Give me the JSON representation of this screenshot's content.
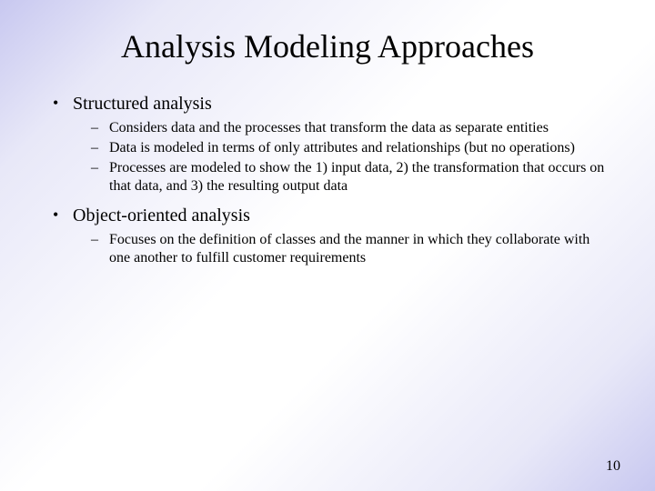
{
  "slide": {
    "title": "Analysis Modeling Approaches",
    "page_number": "10",
    "background_gradient": [
      "#c8c8f0",
      "#ffffff",
      "#c8c8f0"
    ],
    "text_color": "#000000",
    "title_fontsize": 36,
    "body_fontsize": 20,
    "sub_fontsize": 16,
    "font_family": "Times New Roman",
    "bullets": [
      {
        "text": "Structured analysis",
        "sub": [
          "Considers data and the processes that transform the data as separate entities",
          "Data is modeled in terms of only attributes and relationships (but no operations)",
          "Processes  are modeled to show the 1) input data, 2) the transformation that occurs on that data, and 3) the resulting output data"
        ]
      },
      {
        "text": "Object-oriented analysis",
        "sub": [
          "Focuses on the definition of classes and the manner in which they collaborate with one another to fulfill customer requirements"
        ]
      }
    ]
  }
}
